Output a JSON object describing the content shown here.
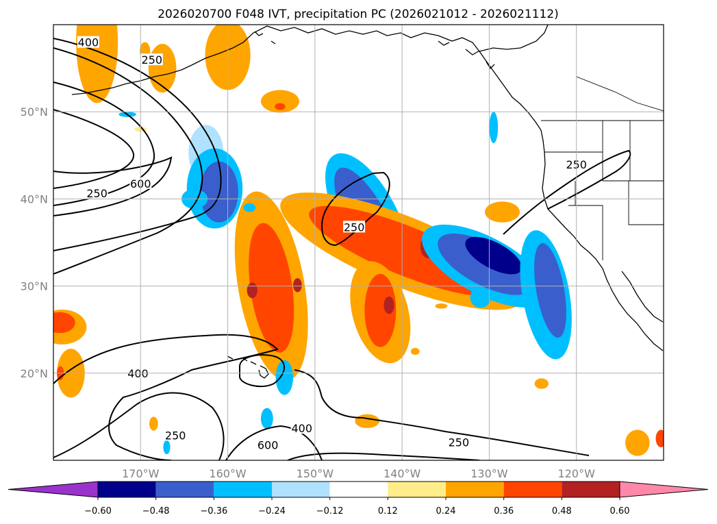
{
  "chart_data": {
    "type": "map-contour",
    "title": "2026020700 F048 IVT, precipitation PC (2026021012 - 2026021112)",
    "x_axis": {
      "range": [
        -180,
        -110
      ],
      "ticks": [
        -170,
        -160,
        -150,
        -140,
        -130,
        -120
      ],
      "tick_labels": [
        "170°W",
        "160°W",
        "150°W",
        "140°W",
        "130°W",
        "120°W"
      ]
    },
    "y_axis": {
      "range": [
        10,
        60
      ],
      "ticks": [
        20,
        30,
        40,
        50
      ],
      "tick_labels": [
        "20°N",
        "30°N",
        "40°N",
        "50°N"
      ]
    },
    "grid": true,
    "ivt_contour_levels": [
      250,
      400,
      600
    ],
    "ivt_contour_labels": [
      {
        "text": "400",
        "lon": -176.0,
        "lat": 57.9
      },
      {
        "text": "250",
        "lon": -168.7,
        "lat": 55.9
      },
      {
        "text": "250",
        "lon": -175.0,
        "lat": 40.6
      },
      {
        "text": "600",
        "lon": -170.0,
        "lat": 41.7
      },
      {
        "text": "250",
        "lon": -145.5,
        "lat": 36.7
      },
      {
        "text": "250",
        "lon": -120.0,
        "lat": 43.9
      },
      {
        "text": "400",
        "lon": -170.3,
        "lat": 19.9
      },
      {
        "text": "250",
        "lon": -166.0,
        "lat": 12.8
      },
      {
        "text": "400",
        "lon": -151.5,
        "lat": 13.6
      },
      {
        "text": "600",
        "lon": -155.4,
        "lat": 11.7
      },
      {
        "text": "250",
        "lon": -133.5,
        "lat": 12.0
      }
    ],
    "colorbar": {
      "orientation": "horizontal",
      "extend": "both",
      "ticks": [
        -0.6,
        -0.48,
        -0.36,
        -0.24,
        -0.12,
        0.12,
        0.24,
        0.36,
        0.48,
        0.6
      ],
      "tick_labels": [
        "−0.60",
        "−0.48",
        "−0.36",
        "−0.24",
        "−0.12",
        "0.12",
        "0.24",
        "0.36",
        "0.48",
        "0.60"
      ],
      "colors": [
        "#9933cc",
        "#00008b",
        "#3a5fcd",
        "#00bfff",
        "#b0e2ff",
        "#ffffff",
        "#ffec8b",
        "#ffa500",
        "#ff4500",
        "#b22222",
        "#ff88aa"
      ]
    },
    "precip_regions": [
      {
        "cls": 4,
        "center": [
          -162.5,
          45.3
        ],
        "r": [
          2.0,
          3.2
        ]
      },
      {
        "cls": 3,
        "center": [
          -161.5,
          41.2
        ],
        "r": [
          3.2,
          4.6
        ]
      },
      {
        "cls": 2,
        "center": [
          -161.0,
          40.8
        ],
        "r": [
          2.2,
          3.5
        ]
      },
      {
        "cls": 3,
        "center": [
          -164.0,
          40.0
        ],
        "r": [
          1.3,
          1.1
        ]
      },
      {
        "cls": 3,
        "center": [
          -144.0,
          38.0
        ],
        "r": [
          3.4,
          8.0
        ],
        "rot": -28
      },
      {
        "cls": 2,
        "center": [
          -144.0,
          37.5
        ],
        "r": [
          2.3,
          6.8
        ],
        "rot": -28
      },
      {
        "cls": 7,
        "center": [
          -140.0,
          34.0
        ],
        "r": [
          4.0,
          15.0
        ],
        "rot": -68
      },
      {
        "cls": 8,
        "center": [
          -139.5,
          34.0
        ],
        "r": [
          2.8,
          12.0
        ],
        "rot": -68
      },
      {
        "cls": 9,
        "center": [
          -137.0,
          34.5
        ],
        "r": [
          0.9,
          1.3
        ]
      },
      {
        "cls": 7,
        "center": [
          -155.0,
          30.0
        ],
        "r": [
          3.8,
          11.0
        ],
        "rot": -10
      },
      {
        "cls": 8,
        "center": [
          -155.0,
          29.8
        ],
        "r": [
          2.4,
          7.5
        ],
        "rot": -8
      },
      {
        "cls": 9,
        "center": [
          -157.2,
          29.5
        ],
        "r": [
          0.6,
          0.9
        ]
      },
      {
        "cls": 9,
        "center": [
          -152.0,
          30.1
        ],
        "r": [
          0.5,
          0.8
        ]
      },
      {
        "cls": 7,
        "center": [
          -142.5,
          27.0
        ],
        "r": [
          3.2,
          6.0
        ],
        "rot": -15
      },
      {
        "cls": 8,
        "center": [
          -142.5,
          27.2
        ],
        "r": [
          1.8,
          4.2
        ]
      },
      {
        "cls": 9,
        "center": [
          -141.5,
          27.8
        ],
        "r": [
          0.6,
          1.0
        ]
      },
      {
        "cls": 7,
        "center": [
          -179.0,
          25.3
        ],
        "r": [
          2.8,
          2.0
        ]
      },
      {
        "cls": 8,
        "center": [
          -179.3,
          25.8
        ],
        "r": [
          1.8,
          1.2
        ]
      },
      {
        "cls": 7,
        "center": [
          -178.0,
          20.0
        ],
        "r": [
          1.6,
          2.8
        ]
      },
      {
        "cls": 8,
        "center": [
          -179.2,
          20.0
        ],
        "r": [
          0.4,
          0.8
        ]
      },
      {
        "cls": 7,
        "center": [
          -160.0,
          56.5
        ],
        "r": [
          2.6,
          4.0
        ]
      },
      {
        "cls": 7,
        "center": [
          -175.0,
          58.0
        ],
        "r": [
          2.4,
          7.0
        ]
      },
      {
        "cls": 7,
        "center": [
          -167.5,
          55.0
        ],
        "r": [
          1.6,
          2.8
        ]
      },
      {
        "cls": 7,
        "center": [
          -154.0,
          51.2
        ],
        "r": [
          2.2,
          1.3
        ]
      },
      {
        "cls": 8,
        "center": [
          -154.0,
          50.6
        ],
        "r": [
          0.6,
          0.4
        ]
      },
      {
        "cls": 3,
        "center": [
          -130.5,
          32.3
        ],
        "r": [
          3.3,
          8.0
        ],
        "rot": -62
      },
      {
        "cls": 2,
        "center": [
          -130.5,
          32.5
        ],
        "r": [
          2.4,
          6.0
        ],
        "rot": -62
      },
      {
        "cls": 1,
        "center": [
          -129.5,
          33.5
        ],
        "r": [
          1.5,
          3.6
        ],
        "rot": -62
      },
      {
        "cls": 3,
        "center": [
          -123.5,
          29.0
        ],
        "r": [
          2.7,
          7.5
        ],
        "rot": -10
      },
      {
        "cls": 2,
        "center": [
          -123.0,
          29.5
        ],
        "r": [
          1.6,
          5.5
        ],
        "rot": -10
      },
      {
        "cls": 3,
        "center": [
          -131.0,
          28.7
        ],
        "r": [
          1.2,
          1.2
        ]
      },
      {
        "cls": 3,
        "center": [
          -129.5,
          48.2
        ],
        "r": [
          0.5,
          1.8
        ]
      },
      {
        "cls": 3,
        "center": [
          -163.5,
          40.0
        ],
        "r": [
          1.2,
          1.0
        ]
      },
      {
        "cls": 3,
        "center": [
          -157.5,
          39.0
        ],
        "r": [
          0.7,
          0.5
        ]
      },
      {
        "cls": 3,
        "center": [
          -153.5,
          19.5
        ],
        "r": [
          1.0,
          2.0
        ]
      },
      {
        "cls": 3,
        "center": [
          -155.5,
          14.8
        ],
        "r": [
          0.7,
          1.2
        ]
      },
      {
        "cls": 3,
        "center": [
          -167.0,
          11.5
        ],
        "r": [
          0.4,
          0.8
        ]
      },
      {
        "cls": 3,
        "center": [
          -171.5,
          49.7
        ],
        "r": [
          1.0,
          0.3
        ]
      },
      {
        "cls": 7,
        "center": [
          -128.5,
          38.5
        ],
        "r": [
          2.0,
          1.2
        ]
      },
      {
        "cls": 7,
        "center": [
          -144.0,
          14.5
        ],
        "r": [
          1.4,
          0.8
        ]
      },
      {
        "cls": 7,
        "center": [
          -168.5,
          14.2
        ],
        "r": [
          0.5,
          0.8
        ]
      },
      {
        "cls": 7,
        "center": [
          -138.5,
          22.5
        ],
        "r": [
          0.5,
          0.4
        ]
      },
      {
        "cls": 7,
        "center": [
          -135.5,
          27.7
        ],
        "r": [
          0.7,
          0.3
        ]
      },
      {
        "cls": 7,
        "center": [
          -169.5,
          57.0
        ],
        "r": [
          0.6,
          1.0
        ]
      },
      {
        "cls": 7,
        "center": [
          -124.0,
          18.8
        ],
        "r": [
          0.8,
          0.6
        ]
      },
      {
        "cls": 7,
        "center": [
          -113.0,
          12.0
        ],
        "r": [
          1.4,
          1.5
        ]
      },
      {
        "cls": 8,
        "center": [
          -110.3,
          12.5
        ],
        "r": [
          0.6,
          1.0
        ]
      },
      {
        "cls": 6,
        "center": [
          -170.0,
          48.0
        ],
        "r": [
          0.7,
          0.3
        ]
      }
    ]
  }
}
